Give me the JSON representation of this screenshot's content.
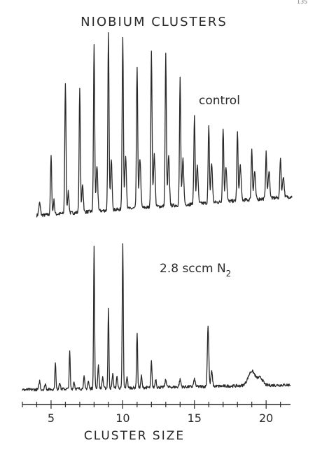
{
  "page_number": "135",
  "colors": {
    "ink": "#2a2a2a",
    "background": "#ffffff"
  },
  "chart_data": {
    "type": "line",
    "title": "NIOBIUM CLUSTERS",
    "xlabel": "CLUSTER SIZE",
    "ylabel": "",
    "xlim": [
      3,
      21.7
    ],
    "x_ticks": [
      5,
      10,
      15,
      20
    ],
    "x_tick_labels": [
      "5",
      "10",
      "15",
      "20"
    ],
    "minor_tick_step": 1,
    "grid": false,
    "y_units": "relative ion intensity (no axis shown)",
    "panels": [
      {
        "label": "control",
        "label_subscript": "",
        "baseline_start": 0.02,
        "baseline_end": 0.18,
        "noise_amplitude": 0.02,
        "peaks": [
          {
            "x": 4.2,
            "y": 0.07,
            "w": 0.08
          },
          {
            "x": 5.0,
            "y": 0.33,
            "w": 0.06
          },
          {
            "x": 5.2,
            "y": 0.08,
            "w": 0.06
          },
          {
            "x": 6.0,
            "y": 0.73,
            "w": 0.06
          },
          {
            "x": 6.2,
            "y": 0.12,
            "w": 0.07
          },
          {
            "x": 7.0,
            "y": 0.7,
            "w": 0.06
          },
          {
            "x": 7.2,
            "y": 0.16,
            "w": 0.07
          },
          {
            "x": 8.0,
            "y": 0.94,
            "w": 0.06
          },
          {
            "x": 8.2,
            "y": 0.25,
            "w": 0.08
          },
          {
            "x": 9.0,
            "y": 1.0,
            "w": 0.06
          },
          {
            "x": 9.2,
            "y": 0.28,
            "w": 0.08
          },
          {
            "x": 10.0,
            "y": 0.98,
            "w": 0.06
          },
          {
            "x": 10.2,
            "y": 0.3,
            "w": 0.08
          },
          {
            "x": 11.0,
            "y": 0.8,
            "w": 0.06
          },
          {
            "x": 11.2,
            "y": 0.28,
            "w": 0.08
          },
          {
            "x": 12.0,
            "y": 0.88,
            "w": 0.06
          },
          {
            "x": 12.2,
            "y": 0.3,
            "w": 0.08
          },
          {
            "x": 13.0,
            "y": 0.86,
            "w": 0.06
          },
          {
            "x": 13.2,
            "y": 0.28,
            "w": 0.08
          },
          {
            "x": 14.0,
            "y": 0.72,
            "w": 0.06
          },
          {
            "x": 14.2,
            "y": 0.26,
            "w": 0.08
          },
          {
            "x": 15.0,
            "y": 0.51,
            "w": 0.06
          },
          {
            "x": 15.2,
            "y": 0.22,
            "w": 0.08
          },
          {
            "x": 16.0,
            "y": 0.43,
            "w": 0.06
          },
          {
            "x": 16.2,
            "y": 0.22,
            "w": 0.08
          },
          {
            "x": 17.0,
            "y": 0.42,
            "w": 0.06
          },
          {
            "x": 17.2,
            "y": 0.2,
            "w": 0.08
          },
          {
            "x": 18.0,
            "y": 0.39,
            "w": 0.06
          },
          {
            "x": 18.2,
            "y": 0.2,
            "w": 0.08
          },
          {
            "x": 19.0,
            "y": 0.29,
            "w": 0.06
          },
          {
            "x": 19.2,
            "y": 0.16,
            "w": 0.08
          },
          {
            "x": 20.0,
            "y": 0.26,
            "w": 0.06
          },
          {
            "x": 20.2,
            "y": 0.16,
            "w": 0.08
          },
          {
            "x": 21.0,
            "y": 0.23,
            "w": 0.06
          },
          {
            "x": 21.2,
            "y": 0.12,
            "w": 0.08
          }
        ]
      },
      {
        "label": "2.8 sccm N",
        "label_subscript": "2",
        "baseline_start": 0.03,
        "baseline_end": 0.04,
        "noise_amplitude": 0.02,
        "peaks": [
          {
            "x": 4.2,
            "y": 0.06,
            "w": 0.06
          },
          {
            "x": 4.6,
            "y": 0.04,
            "w": 0.06
          },
          {
            "x": 5.3,
            "y": 0.19,
            "w": 0.05
          },
          {
            "x": 5.6,
            "y": 0.05,
            "w": 0.06
          },
          {
            "x": 6.3,
            "y": 0.26,
            "w": 0.05
          },
          {
            "x": 6.6,
            "y": 0.05,
            "w": 0.06
          },
          {
            "x": 7.3,
            "y": 0.08,
            "w": 0.06
          },
          {
            "x": 7.6,
            "y": 0.05,
            "w": 0.06
          },
          {
            "x": 8.0,
            "y": 0.98,
            "w": 0.05
          },
          {
            "x": 8.3,
            "y": 0.16,
            "w": 0.06
          },
          {
            "x": 8.6,
            "y": 0.08,
            "w": 0.06
          },
          {
            "x": 9.0,
            "y": 0.55,
            "w": 0.05
          },
          {
            "x": 9.3,
            "y": 0.1,
            "w": 0.06
          },
          {
            "x": 9.6,
            "y": 0.08,
            "w": 0.06
          },
          {
            "x": 10.0,
            "y": 1.0,
            "w": 0.05
          },
          {
            "x": 10.3,
            "y": 0.08,
            "w": 0.06
          },
          {
            "x": 11.0,
            "y": 0.38,
            "w": 0.05
          },
          {
            "x": 11.3,
            "y": 0.08,
            "w": 0.06
          },
          {
            "x": 12.0,
            "y": 0.18,
            "w": 0.05
          },
          {
            "x": 12.3,
            "y": 0.06,
            "w": 0.06
          },
          {
            "x": 13.0,
            "y": 0.05,
            "w": 0.08
          },
          {
            "x": 14.0,
            "y": 0.05,
            "w": 0.08
          },
          {
            "x": 15.0,
            "y": 0.05,
            "w": 0.08
          },
          {
            "x": 15.95,
            "y": 0.42,
            "w": 0.07
          },
          {
            "x": 16.2,
            "y": 0.1,
            "w": 0.08
          },
          {
            "x": 19.0,
            "y": 0.1,
            "w": 0.35
          },
          {
            "x": 19.6,
            "y": 0.05,
            "w": 0.25
          }
        ]
      }
    ]
  }
}
